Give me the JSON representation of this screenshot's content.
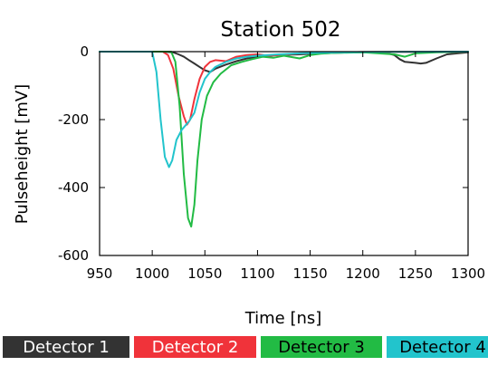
{
  "chart_data": {
    "type": "line",
    "title": "Station 502",
    "xlabel": "Time [ns]",
    "ylabel": "Pulseheight [mV]",
    "xlim": [
      950,
      1300
    ],
    "ylim": [
      -600,
      0
    ],
    "xticks": [
      950,
      1000,
      1050,
      1100,
      1150,
      1200,
      1250,
      1300
    ],
    "yticks": [
      0,
      -200,
      -400,
      -600
    ],
    "grid": false,
    "legend_position": "bottom",
    "series": [
      {
        "name": "Detector 1",
        "color": "#333333",
        "x": [
          950,
          1000,
          1010,
          1020,
          1025,
          1030,
          1035,
          1040,
          1045,
          1050,
          1055,
          1060,
          1070,
          1080,
          1090,
          1100,
          1120,
          1140,
          1160,
          1180,
          1200,
          1220,
          1230,
          1235,
          1240,
          1250,
          1255,
          1260,
          1270,
          1280,
          1300
        ],
        "y": [
          0,
          0,
          0,
          -2,
          -8,
          -15,
          -25,
          -35,
          -45,
          -55,
          -60,
          -50,
          -38,
          -28,
          -20,
          -15,
          -10,
          -8,
          -5,
          -3,
          -2,
          -2,
          -10,
          -22,
          -30,
          -33,
          -35,
          -33,
          -20,
          -8,
          -2
        ]
      },
      {
        "name": "Detector 2",
        "color": "#f0333a",
        "x": [
          950,
          1010,
          1015,
          1020,
          1025,
          1030,
          1033,
          1036,
          1040,
          1045,
          1050,
          1055,
          1060,
          1070,
          1080,
          1090,
          1100,
          1110,
          1120,
          1140,
          1160,
          1180,
          1200,
          1230,
          1260,
          1300
        ],
        "y": [
          0,
          0,
          -10,
          -50,
          -130,
          -190,
          -215,
          -200,
          -140,
          -80,
          -45,
          -30,
          -25,
          -28,
          -15,
          -10,
          -8,
          -12,
          -10,
          -5,
          -3,
          -2,
          -1,
          -1,
          -1,
          0
        ]
      },
      {
        "name": "Detector 3",
        "color": "#22bb44",
        "x": [
          950,
          1018,
          1022,
          1026,
          1030,
          1034,
          1037,
          1040,
          1043,
          1047,
          1052,
          1058,
          1065,
          1075,
          1085,
          1095,
          1105,
          1115,
          1125,
          1140,
          1150,
          1160,
          1170,
          1200,
          1230,
          1240,
          1250,
          1270,
          1300
        ],
        "y": [
          0,
          0,
          -30,
          -160,
          -360,
          -490,
          -515,
          -450,
          -320,
          -200,
          -130,
          -90,
          -65,
          -40,
          -30,
          -22,
          -15,
          -18,
          -12,
          -20,
          -10,
          -6,
          -4,
          -2,
          -8,
          -15,
          -5,
          -2,
          0
        ]
      },
      {
        "name": "Detector 4",
        "color": "#22c4cc",
        "x": [
          950,
          1000,
          1004,
          1008,
          1012,
          1016,
          1019,
          1023,
          1028,
          1035,
          1040,
          1045,
          1050,
          1055,
          1060,
          1070,
          1080,
          1090,
          1100,
          1120,
          1140,
          1160,
          1180,
          1200,
          1300
        ],
        "y": [
          0,
          0,
          -60,
          -200,
          -310,
          -340,
          -320,
          -260,
          -230,
          -205,
          -180,
          -120,
          -80,
          -60,
          -45,
          -30,
          -20,
          -15,
          -12,
          -8,
          -5,
          -3,
          -2,
          -1,
          0
        ]
      }
    ]
  }
}
